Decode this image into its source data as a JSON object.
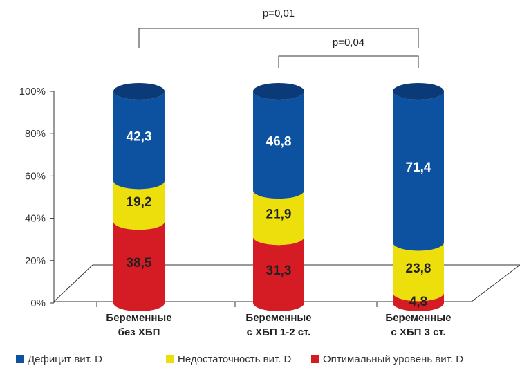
{
  "chart_data": {
    "type": "bar",
    "stacked": true,
    "style": "3d-cylinder",
    "categories": [
      [
        "Беременные",
        "без ХБП"
      ],
      [
        "Беременные",
        "с ХБП 1-2 ст."
      ],
      [
        "Беременные",
        "с ХБП 3 ст."
      ]
    ],
    "series": [
      {
        "name": "Оптимальный уровень вит. D",
        "color": "#d51b23",
        "values": [
          38.5,
          31.3,
          4.8
        ]
      },
      {
        "name": "Недостаточность вит. D",
        "color": "#ecdf0c",
        "values": [
          19.2,
          21.9,
          23.8
        ]
      },
      {
        "name": "Дефицит вит. D",
        "color": "#0c52a1",
        "values": [
          42.3,
          46.8,
          71.4
        ]
      }
    ],
    "value_labels": [
      [
        "38,5",
        "31,3",
        "4,8"
      ],
      [
        "19,2",
        "21,9",
        "23,8"
      ],
      [
        "42,3",
        "46,8",
        "71,4"
      ]
    ],
    "y_ticks": [
      "0%",
      "20%",
      "40%",
      "60%",
      "80%",
      "100%"
    ],
    "ylim": [
      0,
      100
    ],
    "legend_position": "bottom",
    "legend_order": [
      2,
      1,
      0
    ],
    "annotations": [
      {
        "text": "p=0,01",
        "from": 0,
        "to": 2
      },
      {
        "text": "p=0,04",
        "from": 1,
        "to": 2
      }
    ],
    "colors": {
      "deficit": "#0c52a1",
      "insufficiency": "#ecdf0c",
      "optimal": "#d51b23",
      "deficit_top": "#0a3b78"
    }
  }
}
